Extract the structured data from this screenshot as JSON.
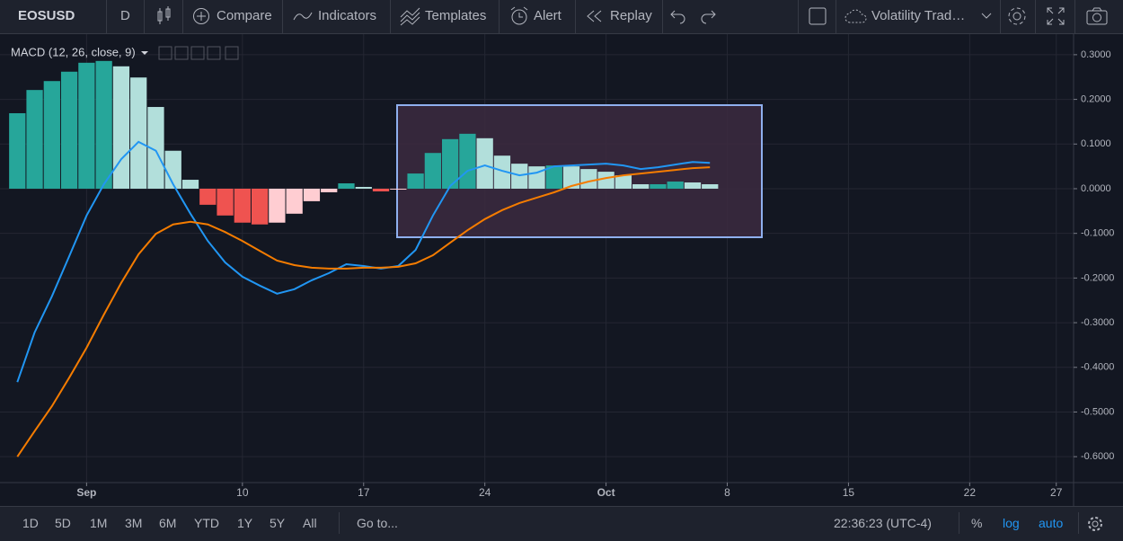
{
  "toolbar": {
    "symbol": "EOSUSD",
    "interval": "D",
    "compare": "Compare",
    "indicators": "Indicators",
    "templates": "Templates",
    "alert": "Alert",
    "replay": "Replay",
    "layout": "Volatility Trad…"
  },
  "bottom_bar": {
    "ranges": [
      "1D",
      "5D",
      "1M",
      "3M",
      "6M",
      "YTD",
      "1Y",
      "5Y",
      "All"
    ],
    "goto": "Go to...",
    "time": "22:36:23 (UTC-4)",
    "percent": "%",
    "log": "log",
    "auto": "auto"
  },
  "chart_data": {
    "type": "combo",
    "title": "MACD (12, 26, close, 9)",
    "x": [
      "Aug 28",
      "Aug 29",
      "Aug 30",
      "Aug 31",
      "Sep 1",
      "Sep 2",
      "Sep 3",
      "Sep 4",
      "Sep 5",
      "Sep 6",
      "Sep 7",
      "Sep 8",
      "Sep 9",
      "Sep 10",
      "Sep 11",
      "Sep 12",
      "Sep 13",
      "Sep 14",
      "Sep 15",
      "Sep 16",
      "Sep 17",
      "Sep 18",
      "Sep 19",
      "Sep 20",
      "Sep 21",
      "Sep 22",
      "Sep 23",
      "Sep 24",
      "Sep 25",
      "Sep 26",
      "Sep 27",
      "Sep 28",
      "Sep 29",
      "Sep 30",
      "Oct 1",
      "Oct 2",
      "Oct 3",
      "Oct 4",
      "Oct 5",
      "Oct 6",
      "Oct 7"
    ],
    "series": [
      {
        "kind": "bar",
        "values": [
          0.169,
          0.221,
          0.241,
          0.262,
          0.282,
          0.286,
          0.274,
          0.249,
          0.183,
          0.085,
          0.02,
          -0.036,
          -0.06,
          -0.076,
          -0.08,
          -0.076,
          -0.056,
          -0.028,
          -0.008,
          0.012,
          0.004,
          -0.006,
          -0.002,
          0.034,
          0.08,
          0.111,
          0.123,
          0.113,
          0.074,
          0.056,
          0.05,
          0.052,
          0.05,
          0.044,
          0.038,
          0.03,
          0.01,
          0.01,
          0.016,
          0.014,
          0.01
        ],
        "colors": [
          "#26a69a",
          "#26a69a",
          "#26a69a",
          "#26a69a",
          "#26a69a",
          "#26a69a",
          "#b2dfdb",
          "#b2dfdb",
          "#b2dfdb",
          "#b2dfdb",
          "#b2dfdb",
          "#ef5350",
          "#ef5350",
          "#ef5350",
          "#ef5350",
          "#ffcdd2",
          "#ffcdd2",
          "#ffcdd2",
          "#ffcdd2",
          "#26a69a",
          "#b2dfdb",
          "#ef5350",
          "#ffcdd2",
          "#26a69a",
          "#26a69a",
          "#26a69a",
          "#26a69a",
          "#b2dfdb",
          "#b2dfdb",
          "#b2dfdb",
          "#b2dfdb",
          "#26a69a",
          "#b2dfdb",
          "#b2dfdb",
          "#b2dfdb",
          "#b2dfdb",
          "#b2dfdb",
          "#26a69a",
          "#26a69a",
          "#b2dfdb",
          "#b2dfdb"
        ]
      },
      {
        "kind": "line",
        "color": "#2196f3",
        "values": [
          -0.433,
          -0.322,
          -0.241,
          -0.151,
          -0.06,
          0.01,
          0.066,
          0.105,
          0.085,
          0.01,
          -0.056,
          -0.117,
          -0.165,
          -0.197,
          -0.217,
          -0.235,
          -0.225,
          -0.205,
          -0.189,
          -0.169,
          -0.173,
          -0.179,
          -0.173,
          -0.137,
          -0.06,
          0.006,
          0.04,
          0.052,
          0.04,
          0.03,
          0.036,
          0.05,
          0.052,
          0.054,
          0.056,
          0.052,
          0.044,
          0.048,
          0.054,
          0.06,
          0.058
        ]
      },
      {
        "kind": "line",
        "color": "#f57c00",
        "values": [
          -0.6,
          -0.543,
          -0.487,
          -0.423,
          -0.356,
          -0.282,
          -0.211,
          -0.147,
          -0.101,
          -0.08,
          -0.074,
          -0.08,
          -0.097,
          -0.117,
          -0.139,
          -0.161,
          -0.171,
          -0.177,
          -0.179,
          -0.179,
          -0.177,
          -0.177,
          -0.175,
          -0.167,
          -0.149,
          -0.121,
          -0.093,
          -0.068,
          -0.048,
          -0.032,
          -0.02,
          -0.008,
          0.006,
          0.016,
          0.024,
          0.03,
          0.034,
          0.038,
          0.042,
          0.046,
          0.048
        ]
      }
    ],
    "xlim": [
      "Aug 27",
      "Oct 28"
    ],
    "xticks": [
      {
        "value": "Sep 1",
        "label": "Sep"
      },
      {
        "value": "Sep 10",
        "label": "10"
      },
      {
        "value": "Sep 17",
        "label": "17"
      },
      {
        "value": "Sep 24",
        "label": "24"
      },
      {
        "value": "Oct 1",
        "label": "Oct"
      },
      {
        "value": "Oct 8",
        "label": "8"
      },
      {
        "value": "Oct 15",
        "label": "15"
      },
      {
        "value": "Oct 22",
        "label": "22"
      },
      {
        "value": "Oct 27",
        "label": "27"
      }
    ],
    "ylim": [
      -0.654,
      0.338
    ],
    "yticks": [
      {
        "value": 0.3,
        "label": "0.3000"
      },
      {
        "value": 0.2,
        "label": "0.2000"
      },
      {
        "value": 0.1,
        "label": "0.1000"
      },
      {
        "value": 0,
        "label": "0.0000"
      },
      {
        "value": -0.1,
        "label": "-0.1000"
      },
      {
        "value": -0.2,
        "label": "-0.2000"
      },
      {
        "value": -0.3,
        "label": "-0.3000"
      },
      {
        "value": -0.4,
        "label": "-0.4000"
      },
      {
        "value": -0.5,
        "label": "-0.5000"
      },
      {
        "value": -0.6,
        "label": "-0.6000"
      }
    ],
    "grid": true
  }
}
